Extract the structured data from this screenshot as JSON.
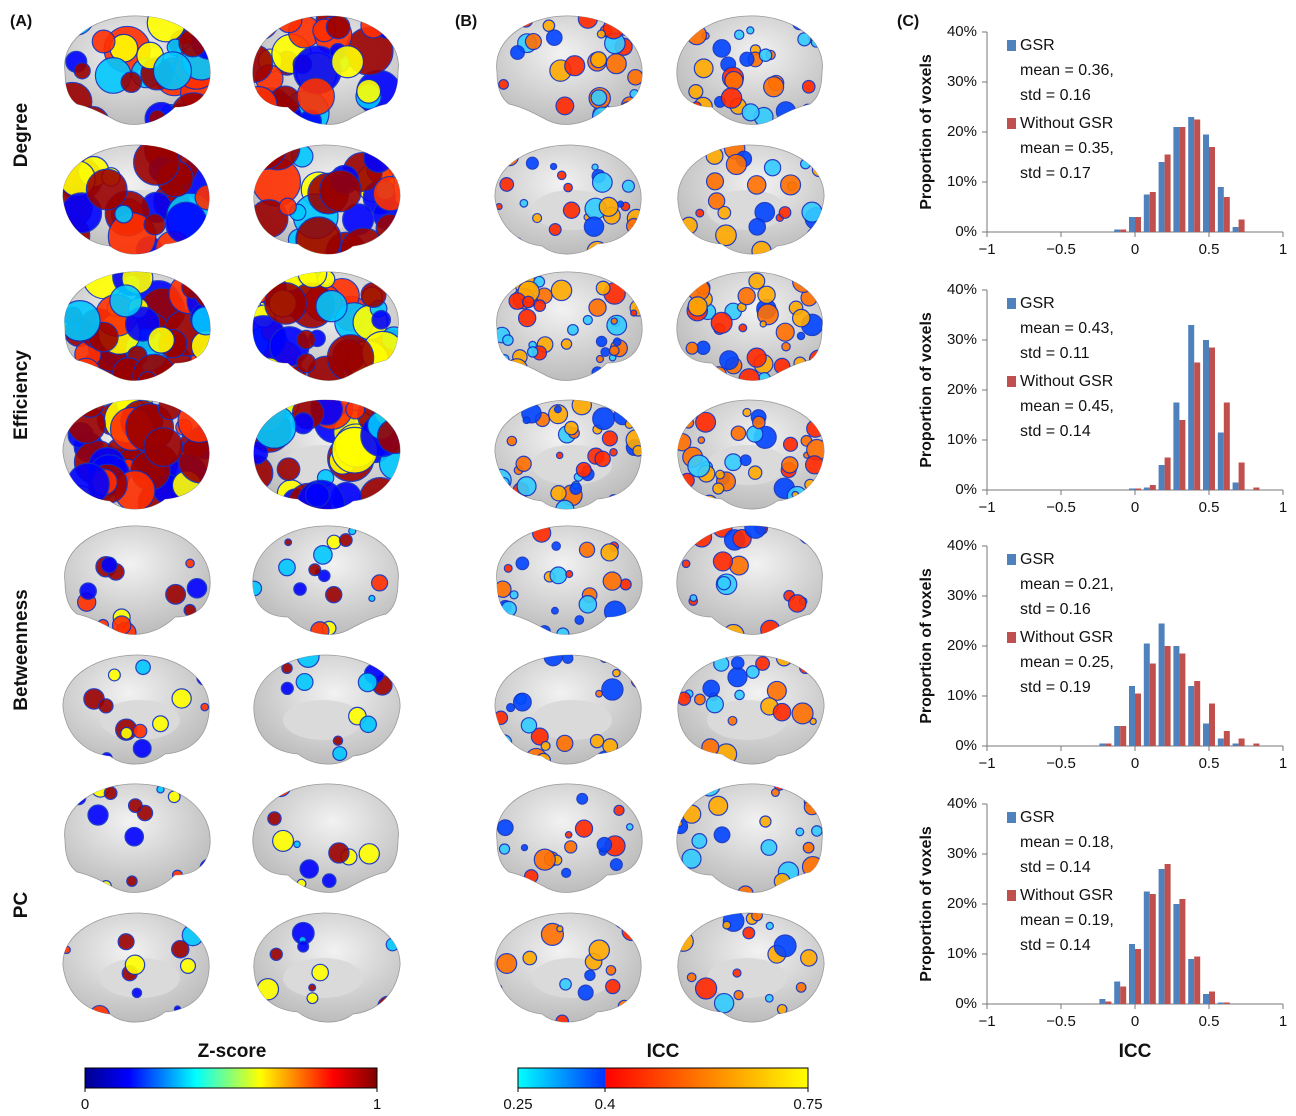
{
  "panel_labels": [
    "(A)",
    "(B)",
    "(C)"
  ],
  "row_labels": [
    "Degree",
    "Efficiency",
    "Betweenness",
    "PC"
  ],
  "colorbars": [
    {
      "title": "Z-score",
      "ticks": [
        0,
        1
      ]
    },
    {
      "title": "ICC",
      "ticks": [
        0.25,
        0.4,
        0.75
      ]
    }
  ],
  "chart_data": [
    {
      "type": "bar",
      "y_label": "Proportion of voxels",
      "x": [
        -0.1,
        0,
        0.1,
        0.2,
        0.3,
        0.4,
        0.5,
        0.6,
        0.7
      ],
      "series": [
        {
          "name": "GSR",
          "color": "#4f81bd",
          "lines": [
            "mean = 0.36,",
            "std = 0.16"
          ],
          "values": [
            0.5,
            3,
            7.5,
            14,
            21,
            23,
            19.5,
            9,
            1
          ]
        },
        {
          "name": "Without GSR",
          "color": "#c0504d",
          "lines": [
            "mean = 0.35,",
            "std = 0.17"
          ],
          "values": [
            0.5,
            3,
            8,
            15.5,
            21,
            22.5,
            17,
            7,
            2.5
          ]
        }
      ],
      "xlim": [
        -1,
        1
      ],
      "xticks": [
        {
          "value": -1,
          "label": "−1"
        },
        {
          "value": -0.5,
          "label": "−0.5"
        },
        0,
        0.5,
        1
      ],
      "ylim": [
        0,
        40
      ],
      "yticks": [
        {
          "value": 0,
          "label": "0%"
        },
        {
          "value": 10,
          "label": "10%"
        },
        {
          "value": 20,
          "label": "20%"
        },
        {
          "value": 30,
          "label": "30%"
        },
        {
          "value": 40,
          "label": "40%"
        }
      ]
    },
    {
      "type": "bar",
      "y_label": "Proportion of voxels",
      "x": [
        0,
        0.1,
        0.2,
        0.3,
        0.4,
        0.5,
        0.6,
        0.7,
        0.8
      ],
      "series": [
        {
          "name": "GSR",
          "color": "#4f81bd",
          "lines": [
            "mean = 0.43,",
            "std = 0.11"
          ],
          "values": [
            0.3,
            0.5,
            5,
            17.5,
            33,
            30,
            11.5,
            1.5,
            0
          ]
        },
        {
          "name": "Without GSR",
          "color": "#c0504d",
          "lines": [
            "mean = 0.45,",
            "std = 0.14"
          ],
          "values": [
            0.3,
            1,
            6.5,
            14,
            25.5,
            28.5,
            17.5,
            5.5,
            0.5
          ]
        }
      ],
      "xlim": [
        -1,
        1
      ],
      "xticks": [
        {
          "value": -1,
          "label": "−1"
        },
        {
          "value": -0.5,
          "label": "−0.5"
        },
        0,
        0.5,
        1
      ],
      "ylim": [
        0,
        40
      ],
      "yticks": [
        {
          "value": 0,
          "label": "0%"
        },
        {
          "value": 10,
          "label": "10%"
        },
        {
          "value": 20,
          "label": "20%"
        },
        {
          "value": 30,
          "label": "30%"
        },
        {
          "value": 40,
          "label": "40%"
        }
      ]
    },
    {
      "type": "bar",
      "y_label": "Proportion of voxels",
      "x": [
        -0.2,
        -0.1,
        0,
        0.1,
        0.2,
        0.3,
        0.4,
        0.5,
        0.6,
        0.7,
        0.8
      ],
      "series": [
        {
          "name": "GSR",
          "color": "#4f81bd",
          "lines": [
            "mean = 0.21,",
            "std = 0.16"
          ],
          "values": [
            0.5,
            4,
            12,
            20.5,
            24.5,
            20,
            12,
            4.5,
            1.5,
            0.5,
            0
          ]
        },
        {
          "name": "Without GSR",
          "color": "#c0504d",
          "lines": [
            "mean = 0.25,",
            "std = 0.19"
          ],
          "values": [
            0.5,
            4,
            10.5,
            16.5,
            20,
            18.5,
            13,
            8.5,
            3,
            1.5,
            0.5
          ]
        }
      ],
      "xlim": [
        -1,
        1
      ],
      "xticks": [
        {
          "value": -1,
          "label": "−1"
        },
        {
          "value": -0.5,
          "label": "−0.5"
        },
        0,
        0.5,
        1
      ],
      "ylim": [
        0,
        40
      ],
      "yticks": [
        {
          "value": 0,
          "label": "0%"
        },
        {
          "value": 10,
          "label": "10%"
        },
        {
          "value": 20,
          "label": "20%"
        },
        {
          "value": 30,
          "label": "30%"
        },
        {
          "value": 40,
          "label": "40%"
        }
      ]
    },
    {
      "type": "bar",
      "y_label": "Proportion of voxels",
      "x_label": "ICC",
      "x": [
        -0.2,
        -0.1,
        0,
        0.1,
        0.2,
        0.3,
        0.4,
        0.5,
        0.6
      ],
      "series": [
        {
          "name": "GSR",
          "color": "#4f81bd",
          "lines": [
            "mean = 0.18,",
            "std = 0.14"
          ],
          "values": [
            1,
            4.5,
            12,
            22.5,
            27,
            20,
            9,
            2,
            0.3
          ]
        },
        {
          "name": "Without GSR",
          "color": "#c0504d",
          "lines": [
            "mean = 0.19,",
            "std = 0.14"
          ],
          "values": [
            0.5,
            3.5,
            11,
            22,
            28,
            21,
            9.5,
            2.5,
            0.3
          ]
        }
      ],
      "xlim": [
        -1,
        1
      ],
      "xticks": [
        {
          "value": -1,
          "label": "−1"
        },
        {
          "value": -0.5,
          "label": "−0.5"
        },
        0,
        0.5,
        1
      ],
      "ylim": [
        0,
        40
      ],
      "yticks": [
        {
          "value": 0,
          "label": "0%"
        },
        {
          "value": 10,
          "label": "10%"
        },
        {
          "value": 20,
          "label": "20%"
        },
        {
          "value": 30,
          "label": "30%"
        },
        {
          "value": 40,
          "label": "40%"
        }
      ]
    }
  ]
}
